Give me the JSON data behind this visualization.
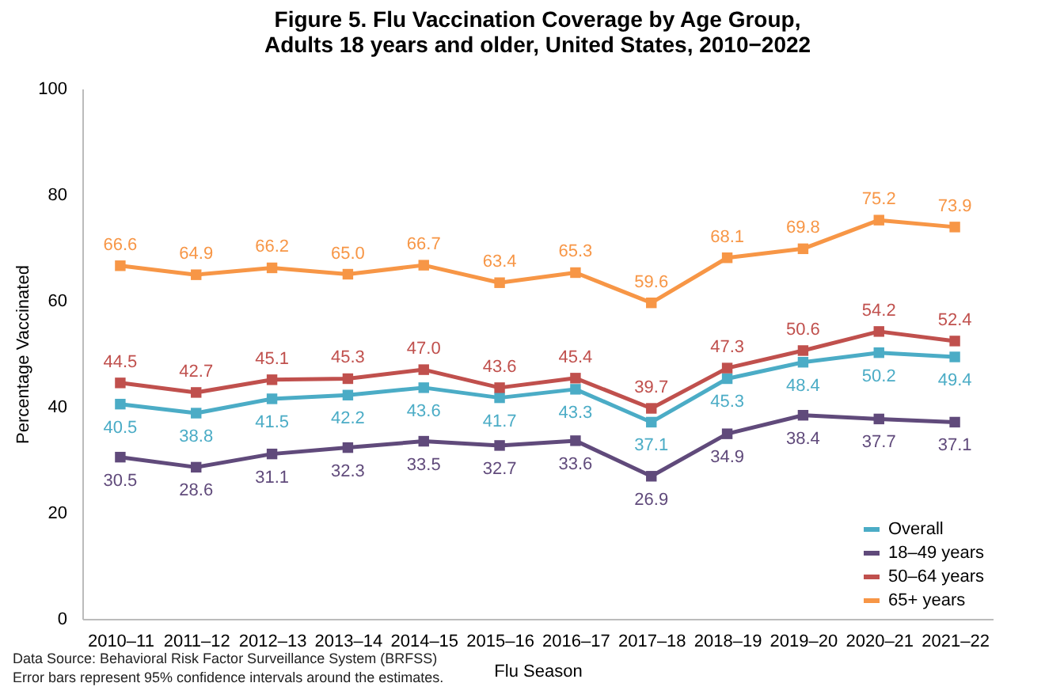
{
  "chart_data": {
    "type": "line",
    "title": "Figure 5. Flu Vaccination Coverage by Age Group,\nAdults 18 years and older, United States, 2010−2022",
    "xlabel": "Flu Season",
    "ylabel": "Percentage Vaccinated",
    "categories": [
      "2010–11",
      "2011–12",
      "2012–13",
      "2013–14",
      "2014–15",
      "2015–16",
      "2016–17",
      "2017–18",
      "2018–19",
      "2019–20",
      "2020–21",
      "2021–22"
    ],
    "series": [
      {
        "name": "Overall",
        "color": "#4bacc6",
        "values": [
          40.5,
          38.8,
          41.5,
          42.2,
          43.6,
          41.7,
          43.3,
          37.1,
          45.3,
          48.4,
          50.2,
          49.4
        ],
        "value_labels": [
          "40.5",
          "38.8",
          "41.5",
          "42.2",
          "43.6",
          "41.7",
          "43.3",
          "37.1",
          "45.3",
          "48.4",
          "50.2",
          "49.4"
        ]
      },
      {
        "name": "18–49 years",
        "color": "#604a7b",
        "values": [
          30.5,
          28.6,
          31.1,
          32.3,
          33.5,
          32.7,
          33.6,
          26.9,
          34.9,
          38.4,
          37.7,
          37.1
        ],
        "value_labels": [
          "30.5",
          "28.6",
          "31.1",
          "32.3",
          "33.5",
          "32.7",
          "33.6",
          "26.9",
          "34.9",
          "38.4",
          "37.7",
          "37.1"
        ]
      },
      {
        "name": "50–64 years",
        "color": "#c0504d",
        "values": [
          44.5,
          42.7,
          45.1,
          45.3,
          47.0,
          43.6,
          45.4,
          39.7,
          47.3,
          50.6,
          54.2,
          52.4
        ],
        "value_labels": [
          "44.5",
          "42.7",
          "45.1",
          "45.3",
          "47.0",
          "43.6",
          "45.4",
          "39.7",
          "47.3",
          "50.6",
          "54.2",
          "52.4"
        ]
      },
      {
        "name": "65+ years",
        "color": "#f79646",
        "values": [
          66.6,
          64.9,
          66.2,
          65.0,
          66.7,
          63.4,
          65.3,
          59.6,
          68.1,
          69.8,
          75.2,
          73.9
        ],
        "value_labels": [
          "66.6",
          "64.9",
          "66.2",
          "65.0",
          "66.7",
          "63.4",
          "65.3",
          "59.6",
          "68.1",
          "69.8",
          "75.2",
          "73.9"
        ]
      }
    ],
    "ylim": [
      0,
      100
    ],
    "yticks": [
      0,
      20,
      40,
      60,
      80,
      100
    ],
    "grid": false,
    "legend": "bottom right",
    "marker": "square",
    "line_style": "solid",
    "annotations": [
      "Data Source: Behavioral Risk Factor Surveillance System (BRFSS)",
      "Error bars represent 95% confidence intervals around the estimates."
    ]
  }
}
